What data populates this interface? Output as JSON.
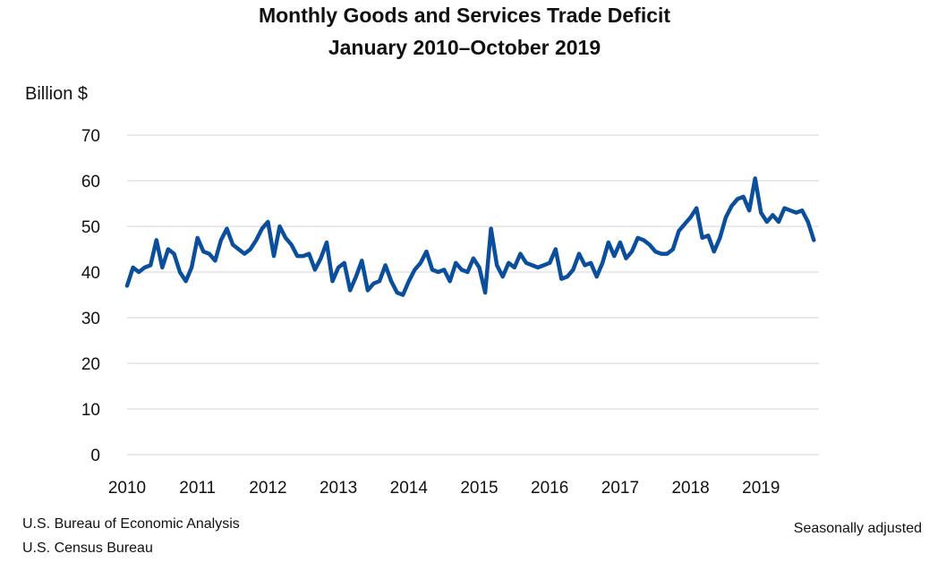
{
  "chart_data": {
    "type": "line",
    "title": "Monthly Goods and Services Trade Deficit",
    "subtitle": "January 2010–October 2019",
    "ylabel": "Billion $",
    "xlabel": "",
    "ylim": [
      0,
      70
    ],
    "yticks": [
      0,
      10,
      20,
      30,
      40,
      50,
      60,
      70
    ],
    "xticks": [
      "2010",
      "2011",
      "2012",
      "2013",
      "2014",
      "2015",
      "2016",
      "2017",
      "2018",
      "2019"
    ],
    "grid": "horizontal",
    "legend": "none",
    "color": "#0b4f9c",
    "x_start": "2010-01",
    "x_end": "2019-10",
    "frequency": "monthly",
    "series": [
      {
        "values": [
          37,
          41,
          40,
          41,
          41.5,
          47,
          41,
          45,
          44,
          40,
          38,
          41,
          47.5,
          44.5,
          44,
          42.5,
          47,
          49.5,
          46,
          45,
          44,
          45,
          47,
          49.5,
          51,
          43.5,
          50,
          47.5,
          46,
          43.5,
          43.5,
          44,
          40.5,
          43,
          46.5,
          38,
          41,
          42,
          36,
          39,
          42.5,
          36,
          37.5,
          38,
          41.5,
          38,
          35.5,
          35,
          38,
          40.5,
          42,
          44.5,
          40.5,
          40,
          40.5,
          38,
          42,
          40.5,
          40,
          43,
          41,
          35.5,
          49.5,
          41.5,
          39,
          42,
          41,
          44,
          42,
          41.5,
          41,
          41.5,
          42,
          45,
          38.5,
          39,
          40.5,
          44,
          41.5,
          42,
          39,
          42,
          46.5,
          43.5,
          46.5,
          43,
          44.5,
          47.5,
          47,
          46,
          44.5,
          44,
          44,
          45,
          49,
          50.5,
          52,
          54,
          47.5,
          48,
          44.5,
          47.5,
          52,
          54.5,
          56,
          56.5,
          53.5,
          60.5,
          53,
          51,
          52.5,
          51,
          54,
          53.5,
          53,
          53.5,
          51,
          47
        ]
      }
    ]
  },
  "notes": {
    "source_line1": "U.S. Bureau of Economic Analysis",
    "source_line2": "U.S. Census Bureau",
    "adjustment": "Seasonally adjusted"
  }
}
